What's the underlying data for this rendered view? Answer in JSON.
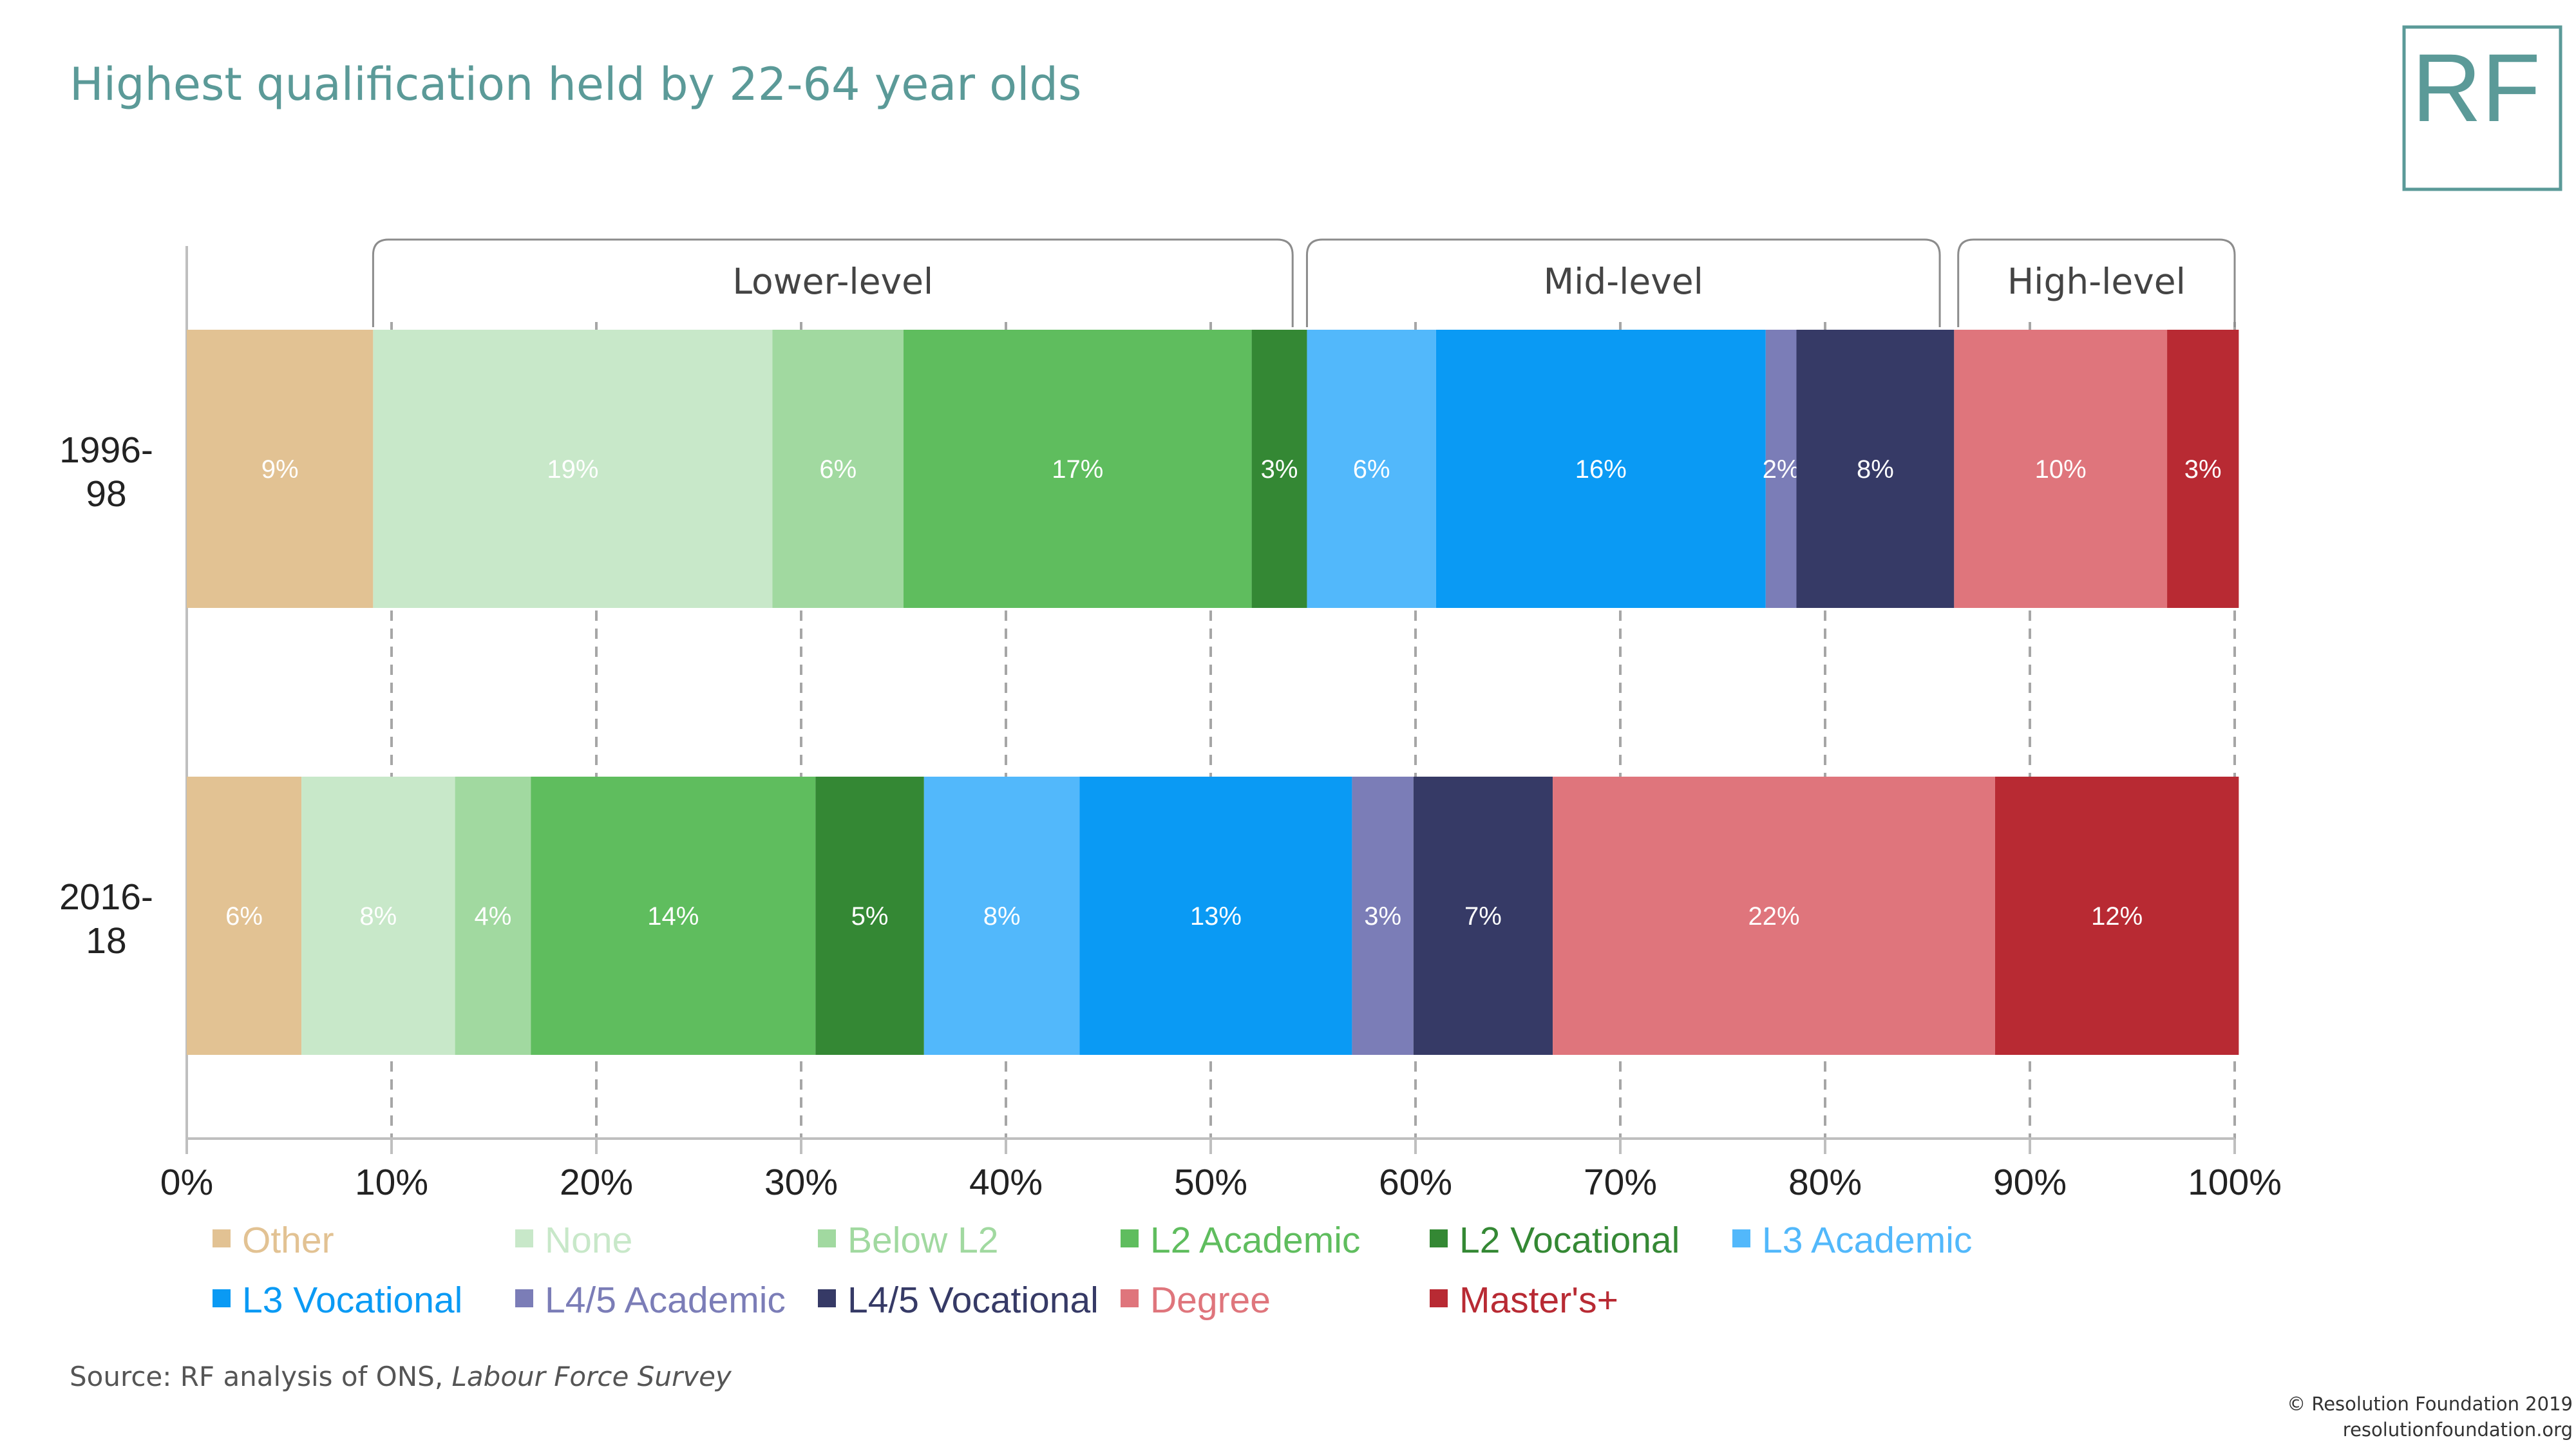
{
  "title": "Highest qualification held by 22-64 year olds",
  "logo": {
    "text": "RF",
    "color": "#5b9a98"
  },
  "source": {
    "prefix": "Source: RF analysis of ONS, ",
    "italic": "Labour Force Survey"
  },
  "copyright": [
    "© Resolution Foundation 2019",
    "resolutionfoundation.org"
  ],
  "chart_data": {
    "type": "bar",
    "orientation": "horizontal",
    "stacked": true,
    "title": "Highest qualification held by 22-64 year olds",
    "xlabel": "",
    "ylabel": "",
    "xlim": [
      0,
      100
    ],
    "x_ticks": [
      "0%",
      "10%",
      "20%",
      "30%",
      "40%",
      "50%",
      "60%",
      "70%",
      "80%",
      "90%",
      "100%"
    ],
    "grid": "vertical dashed",
    "legend_position": "bottom",
    "categories": [
      {
        "name": "1996-98",
        "lines": [
          "1996-",
          "98"
        ]
      },
      {
        "name": "2016-18",
        "lines": [
          "2016-",
          "18"
        ]
      }
    ],
    "groups": [
      {
        "label": "Lower-level",
        "from": 9.1,
        "to": 54.0
      },
      {
        "label": "Mid-level",
        "from": 54.7,
        "to": 85.6
      },
      {
        "label": "High-level",
        "from": 86.5,
        "to": 100
      }
    ],
    "series": [
      {
        "name": "Other",
        "color": "#e2c293",
        "values": [
          9.1,
          5.6
        ],
        "labels": [
          "9%",
          "6%"
        ]
      },
      {
        "name": "None",
        "color": "#c8e8c9",
        "values": [
          19.5,
          7.5
        ],
        "labels": [
          "19%",
          "8%"
        ]
      },
      {
        "name": "Below L2",
        "color": "#a1d9a0",
        "values": [
          6.4,
          3.7
        ],
        "labels": [
          "6%",
          "4%"
        ]
      },
      {
        "name": "L2 Academic",
        "color": "#5fbd5e",
        "values": [
          17.0,
          13.9
        ],
        "labels": [
          "17%",
          "14%"
        ]
      },
      {
        "name": "L2 Vocational",
        "color": "#348834",
        "values": [
          2.7,
          5.3
        ],
        "labels": [
          "3%",
          "5%"
        ]
      },
      {
        "name": "L3 Academic",
        "color": "#52b8fb",
        "values": [
          6.3,
          7.6
        ],
        "labels": [
          "6%",
          "8%"
        ]
      },
      {
        "name": "L3 Vocational",
        "color": "#0a9af4",
        "values": [
          16.1,
          13.3
        ],
        "labels": [
          "16%",
          "13%"
        ]
      },
      {
        "name": "L4/5 Academic",
        "color": "#7b7db7",
        "values": [
          1.5,
          3.0
        ],
        "labels": [
          "2%",
          "3%"
        ]
      },
      {
        "name": "L4/5 Vocational",
        "color": "#363a66",
        "values": [
          7.7,
          6.8
        ],
        "labels": [
          "8%",
          "7%"
        ]
      },
      {
        "name": "Degree",
        "color": "#df757c",
        "values": [
          10.4,
          21.6
        ],
        "labels": [
          "10%",
          "22%"
        ]
      },
      {
        "name": "Master's+",
        "color": "#b82a33",
        "values": [
          3.5,
          11.9
        ],
        "labels": [
          "3%",
          "12%"
        ]
      }
    ]
  }
}
